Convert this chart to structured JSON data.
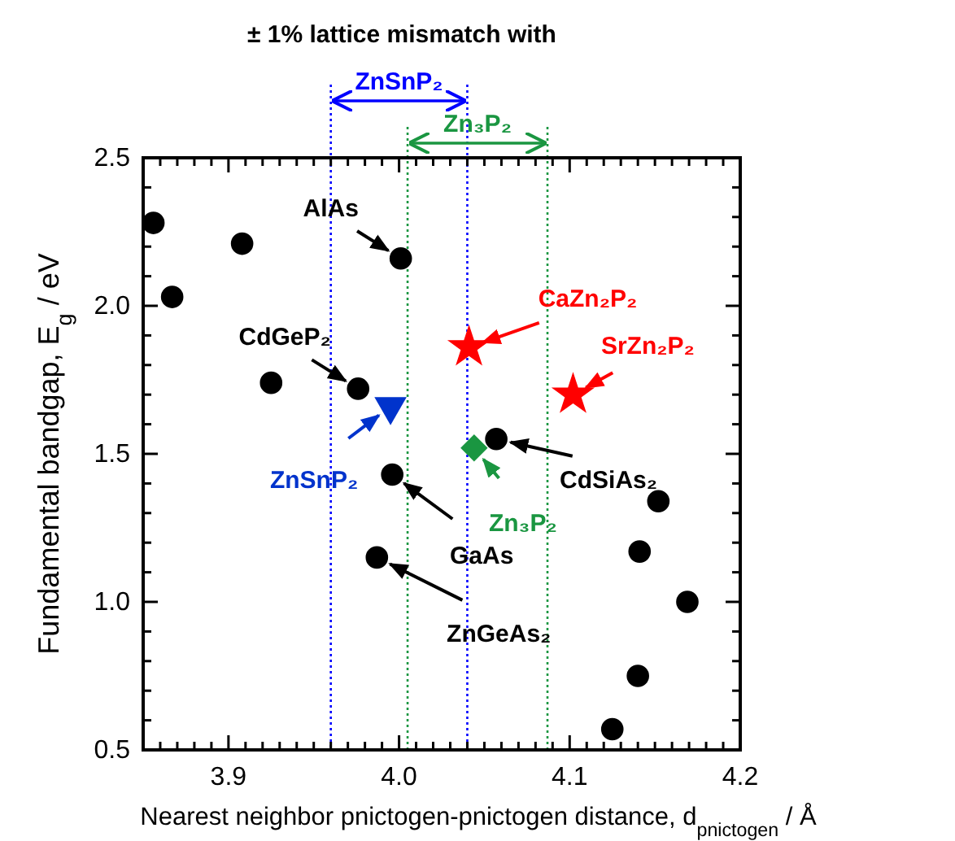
{
  "chart_data": {
    "type": "scatter",
    "title": "± 1% lattice mismatch with",
    "xlabel": "Nearest neighbor pnictogen-pnictogen distance, d$_{pnictogen}$ / Å",
    "ylabel": "Fundamental bandgap, E$_{g}$ / eV",
    "xlim": [
      3.85,
      4.2
    ],
    "ylim": [
      0.5,
      2.5
    ],
    "xticks": [
      {
        "value": 3.9,
        "label": "3.9"
      },
      {
        "value": 4.0,
        "label": "4.0"
      },
      {
        "value": 4.1,
        "label": "4.1"
      },
      {
        "value": 4.2,
        "label": "4.2"
      },
      {
        "value": 3.86,
        "label": null
      },
      {
        "value": 3.87,
        "label": null
      },
      {
        "value": 3.88,
        "label": null
      },
      {
        "value": 3.89,
        "label": null
      },
      {
        "value": 3.91,
        "label": null
      },
      {
        "value": 3.92,
        "label": null
      },
      {
        "value": 3.93,
        "label": null
      },
      {
        "value": 3.94,
        "label": null
      },
      {
        "value": 3.95,
        "label": null
      },
      {
        "value": 3.96,
        "label": null
      },
      {
        "value": 3.97,
        "label": null
      },
      {
        "value": 3.98,
        "label": null
      },
      {
        "value": 3.99,
        "label": null
      },
      {
        "value": 4.01,
        "label": null
      },
      {
        "value": 4.02,
        "label": null
      },
      {
        "value": 4.03,
        "label": null
      },
      {
        "value": 4.04,
        "label": null
      },
      {
        "value": 4.05,
        "label": null
      },
      {
        "value": 4.06,
        "label": null
      },
      {
        "value": 4.07,
        "label": null
      },
      {
        "value": 4.08,
        "label": null
      },
      {
        "value": 4.09,
        "label": null
      },
      {
        "value": 4.11,
        "label": null
      },
      {
        "value": 4.12,
        "label": null
      },
      {
        "value": 4.13,
        "label": null
      },
      {
        "value": 4.14,
        "label": null
      },
      {
        "value": 4.15,
        "label": null
      },
      {
        "value": 4.16,
        "label": null
      },
      {
        "value": 4.17,
        "label": null
      },
      {
        "value": 4.18,
        "label": null
      },
      {
        "value": 4.19,
        "label": null
      }
    ],
    "yticks": [
      {
        "value": 0.5,
        "label": "0.5"
      },
      {
        "value": 1.0,
        "label": "1.0"
      },
      {
        "value": 1.5,
        "label": "1.5"
      },
      {
        "value": 2.0,
        "label": "2.0"
      },
      {
        "value": 2.5,
        "label": "2.5"
      },
      {
        "value": 0.6,
        "label": null
      },
      {
        "value": 0.7,
        "label": null
      },
      {
        "value": 0.8,
        "label": null
      },
      {
        "value": 0.9,
        "label": null
      },
      {
        "value": 1.1,
        "label": null
      },
      {
        "value": 1.2,
        "label": null
      },
      {
        "value": 1.3,
        "label": null
      },
      {
        "value": 1.4,
        "label": null
      },
      {
        "value": 1.6,
        "label": null
      },
      {
        "value": 1.7,
        "label": null
      },
      {
        "value": 1.8,
        "label": null
      },
      {
        "value": 1.9,
        "label": null
      },
      {
        "value": 2.1,
        "label": null
      },
      {
        "value": 2.2,
        "label": null
      },
      {
        "value": 2.3,
        "label": null
      },
      {
        "value": 2.4,
        "label": null
      }
    ],
    "grid": false,
    "series": [
      {
        "color": "#000000",
        "marker": "circle",
        "x": [
          3.856,
          3.908,
          3.867,
          3.925,
          3.976,
          4.001,
          3.996,
          3.987,
          4.057,
          4.152,
          4.141,
          4.169,
          4.14,
          4.125
        ],
        "values": [
          2.28,
          2.21,
          2.03,
          1.74,
          1.72,
          2.16,
          1.43,
          1.15,
          1.55,
          1.34,
          1.17,
          1.0,
          0.75,
          0.57
        ]
      },
      {
        "name": "ZnSnP₂",
        "color": "#0033cc",
        "marker": "triangle",
        "x": [
          3.995
        ],
        "values": [
          1.66
        ]
      },
      {
        "name": "CaZn₂P₂",
        "color": "#ff0000",
        "marker": "star",
        "x": [
          4.041
        ],
        "values": [
          1.86
        ]
      },
      {
        "name": "SrZn₂P₂",
        "color": "#ff0000",
        "marker": "star",
        "x": [
          4.102
        ],
        "values": [
          1.7
        ]
      },
      {
        "name": "Zn₃P₂",
        "color": "#1a9641",
        "marker": "diamond",
        "x": [
          4.044
        ],
        "values": [
          1.52
        ]
      }
    ],
    "ref_lines": [
      {
        "axis": "x",
        "value": 3.96,
        "label": "ZnSnP₂",
        "color": "#0000ff",
        "line_style": "dotted"
      },
      {
        "axis": "x",
        "value": 4.04,
        "color": "#0000ff",
        "line_style": "dotted"
      },
      {
        "axis": "x",
        "value": 4.005,
        "label": "Zn₃P₂",
        "color": "#1a9641",
        "line_style": "dotted"
      },
      {
        "axis": "x",
        "value": 4.087,
        "color": "#1a9641",
        "line_style": "dotted"
      }
    ],
    "annotations": [
      {
        "text": "AlAs",
        "x": 4.001,
        "y": 2.16
      },
      {
        "text": "CdGeP₂",
        "x": 3.976,
        "y": 1.72
      },
      {
        "text": "GaAs",
        "x": 3.996,
        "y": 1.43
      },
      {
        "text": "ZnGeAs₂",
        "x": 3.987,
        "y": 1.15
      },
      {
        "text": "CdSiAs₂",
        "x": 4.057,
        "y": 1.55
      }
    ]
  }
}
